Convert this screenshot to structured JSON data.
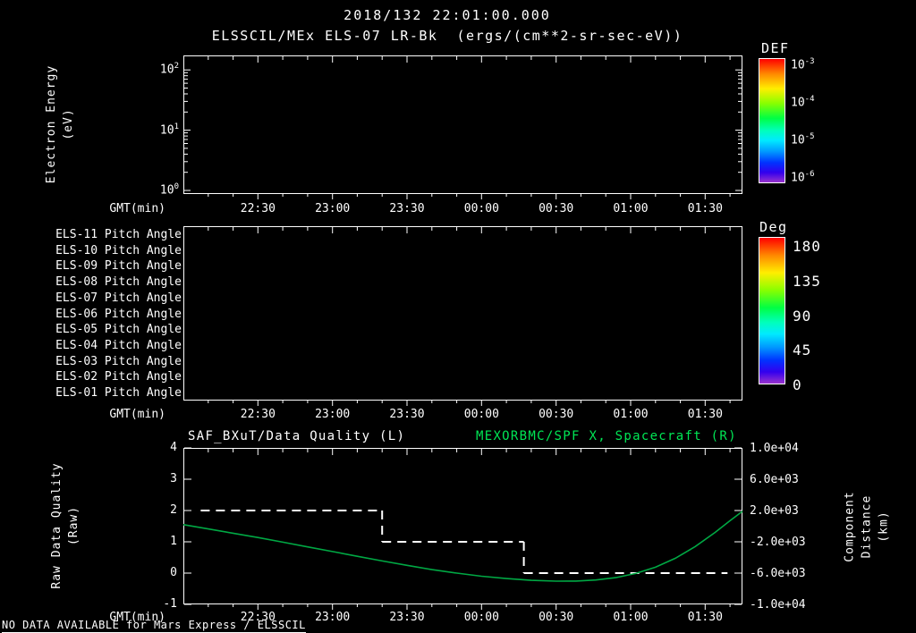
{
  "header": {
    "title": "2018/132 22:01:00.000",
    "subtitle": "ELSSCIL/MEx ELS-07 LR-Bk  (ergs/(cm**2-sr-sec-eV))"
  },
  "time_axis": {
    "label": "GMT(min)",
    "xlim_minutes_after_2200": [
      0,
      225
    ],
    "ticks": [
      {
        "min": 30,
        "label": "22:30"
      },
      {
        "min": 60,
        "label": "23:00"
      },
      {
        "min": 90,
        "label": "23:30"
      },
      {
        "min": 120,
        "label": "00:00"
      },
      {
        "min": 150,
        "label": "00:30"
      },
      {
        "min": 180,
        "label": "01:00"
      },
      {
        "min": 210,
        "label": "01:30"
      }
    ]
  },
  "energy_panel": {
    "ylabel": "Electron Energy\n(eV)",
    "yticks": [
      {
        "base": "10",
        "exp": "2"
      },
      {
        "base": "10",
        "exp": "1"
      },
      {
        "base": "10",
        "exp": "0"
      }
    ],
    "colorbar": {
      "title": "DEF",
      "ticks": [
        {
          "base": "10",
          "exp": "-3"
        },
        {
          "base": "10",
          "exp": "-4"
        },
        {
          "base": "10",
          "exp": "-5"
        },
        {
          "base": "10",
          "exp": "-6"
        }
      ]
    }
  },
  "pitch_panel": {
    "rows": [
      "ELS-11 Pitch Angle",
      "ELS-10 Pitch Angle",
      "ELS-09 Pitch Angle",
      "ELS-08 Pitch Angle",
      "ELS-07 Pitch Angle",
      "ELS-06 Pitch Angle",
      "ELS-05 Pitch Angle",
      "ELS-04 Pitch Angle",
      "ELS-03 Pitch Angle",
      "ELS-02 Pitch Angle",
      "ELS-01 Pitch Angle"
    ],
    "colorbar": {
      "title": "Deg",
      "ticks": [
        "180",
        "135",
        "90",
        "45",
        "0"
      ]
    }
  },
  "bottom_panel": {
    "title_left": "SAF_BXuT/Data Quality (L)",
    "title_right": "MEXORBMC/SPF X, Spacecraft (R)",
    "ylabel_left": "Raw Data Quality\n(Raw)",
    "ylabel_right": "Component Distance\n(km)",
    "yticks_left": [
      "4",
      "3",
      "2",
      "1",
      "0",
      "-1"
    ],
    "yticks_right": [
      "1.0e+04",
      "6.0e+03",
      "2.0e+03",
      "-2.0e+03",
      "-6.0e+03",
      "-1.0e+04"
    ]
  },
  "footer": "NO DATA AVAILABLE for Mars Express / ELSSCIL",
  "colors": {
    "background": "#000000",
    "foreground": "#ffffff",
    "accent_green_title": "#00e755",
    "curve_green": "#00a844"
  },
  "chart_data": [
    {
      "type": "heatmap",
      "name": "electron-energy-spectrogram",
      "title": "ELSSCIL/MEx ELS-07 LR-Bk (ergs/(cm**2-sr-sec-eV))",
      "xlabel": "GMT(min)",
      "ylabel": "Electron Energy (eV)",
      "yscale": "log",
      "ylim": [
        0.87,
        174
      ],
      "yticks": [
        1,
        10,
        100
      ],
      "xtick_labels": [
        "22:30",
        "23:00",
        "23:30",
        "00:00",
        "00:30",
        "01:00",
        "01:30"
      ],
      "colorbar_label": "DEF",
      "colorbar_ticks": [
        "1e-3",
        "1e-4",
        "1e-5",
        "1e-6"
      ],
      "values": [],
      "note": "panel is empty - NO DATA AVAILABLE"
    },
    {
      "type": "heatmap",
      "name": "pitch-angle-rows",
      "xlabel": "GMT(min)",
      "rows": [
        "ELS-11",
        "ELS-10",
        "ELS-09",
        "ELS-08",
        "ELS-07",
        "ELS-06",
        "ELS-05",
        "ELS-04",
        "ELS-03",
        "ELS-02",
        "ELS-01"
      ],
      "xtick_labels": [
        "22:30",
        "23:00",
        "23:30",
        "00:00",
        "00:30",
        "01:00",
        "01:30"
      ],
      "colorbar_label": "Deg",
      "colorbar_ticks": [
        180,
        135,
        90,
        45,
        0
      ],
      "values": [],
      "note": "panel is empty - NO DATA AVAILABLE"
    },
    {
      "type": "line",
      "name": "quality-and-spacecraft-distance",
      "xlabel": "GMT(min)",
      "x_unit": "minutes after 22:00",
      "xlim": [
        0,
        225
      ],
      "xticks": [
        30,
        60,
        90,
        120,
        150,
        180,
        210
      ],
      "xtick_labels": [
        "22:30",
        "23:00",
        "23:30",
        "00:00",
        "00:30",
        "01:00",
        "01:30"
      ],
      "left_axis": {
        "label": "Raw Data Quality (Raw)",
        "lim": [
          -1,
          4
        ],
        "ticks": [
          4,
          3,
          2,
          1,
          0,
          -1
        ]
      },
      "right_axis": {
        "label": "Component Distance (km)",
        "lim": [
          -10000,
          10000
        ],
        "ticks": [
          10000,
          6000,
          2000,
          -2000,
          -6000,
          -10000
        ]
      },
      "series": [
        {
          "name": "SAF_BXuT/Data Quality (L)",
          "axis": "left",
          "line": "dashed",
          "color": "#ffffff",
          "segments": [
            {
              "t_start": 7,
              "t_end": 80,
              "value": 2
            },
            {
              "t_start": 80,
              "t_end": 137,
              "value": 1
            },
            {
              "t_start": 137,
              "t_end": 219,
              "value": 0
            }
          ]
        },
        {
          "name": "MEXORBMC/SPF X, Spacecraft (R)",
          "axis": "right",
          "line": "solid",
          "color": "#00a844",
          "points_t_km": [
            [
              0,
              200
            ],
            [
              10,
              -350
            ],
            [
              20,
              -900
            ],
            [
              30,
              -1450
            ],
            [
              40,
              -2050
            ],
            [
              50,
              -2650
            ],
            [
              60,
              -3250
            ],
            [
              70,
              -3850
            ],
            [
              80,
              -4450
            ],
            [
              90,
              -5000
            ],
            [
              100,
              -5550
            ],
            [
              110,
              -6000
            ],
            [
              120,
              -6400
            ],
            [
              130,
              -6700
            ],
            [
              140,
              -6930
            ],
            [
              150,
              -7030
            ],
            [
              158,
              -7020
            ],
            [
              166,
              -6880
            ],
            [
              174,
              -6580
            ],
            [
              182,
              -6050
            ],
            [
              190,
              -5250
            ],
            [
              198,
              -4100
            ],
            [
              206,
              -2600
            ],
            [
              214,
              -800
            ],
            [
              220,
              700
            ],
            [
              225,
              1900
            ]
          ]
        }
      ]
    }
  ]
}
